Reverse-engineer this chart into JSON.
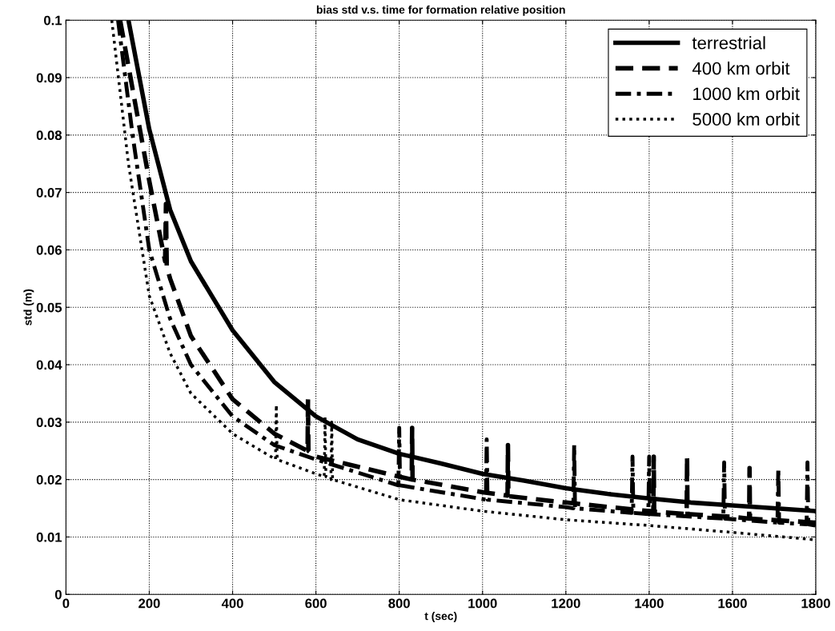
{
  "chart_data": {
    "type": "line",
    "title": "bias std v.s. time for formation relative position",
    "xlabel": "t (sec)",
    "ylabel": "std (m)",
    "xlim": [
      0,
      1800
    ],
    "ylim": [
      0,
      0.1
    ],
    "xticks": [
      0,
      200,
      400,
      600,
      800,
      1000,
      1200,
      1400,
      1600,
      1800
    ],
    "yticks": [
      0,
      0.01,
      0.02,
      0.03,
      0.04,
      0.05,
      0.06,
      0.07,
      0.08,
      0.09,
      0.1
    ],
    "grid": true,
    "legend": "top right",
    "marker": "none",
    "series": [
      {
        "name": "terrestrial",
        "color": "#000000",
        "line_style": "solid",
        "x": [
          150,
          200,
          250,
          300,
          350,
          400,
          500,
          600,
          700,
          800,
          900,
          1000,
          1100,
          1200,
          1300,
          1400,
          1500,
          1600,
          1700,
          1800
        ],
        "values": [
          0.1,
          0.081,
          0.067,
          0.058,
          0.052,
          0.046,
          0.037,
          0.031,
          0.027,
          0.0245,
          0.0228,
          0.021,
          0.0198,
          0.0185,
          0.0175,
          0.0167,
          0.016,
          0.0155,
          0.015,
          0.0145
        ]
      },
      {
        "name": "400 km orbit",
        "color": "#000000",
        "line_style": "dashed",
        "x": [
          130,
          160,
          200,
          238,
          240,
          242,
          250,
          300,
          400,
          500,
          580,
          581,
          582,
          600,
          800,
          830,
          831,
          832,
          1000,
          1060,
          1061,
          1062,
          1200,
          1400,
          1410,
          1411,
          1412,
          1490,
          1491,
          1492,
          1600,
          1640,
          1641,
          1642,
          1800
        ],
        "values": [
          0.1,
          0.088,
          0.072,
          0.058,
          0.068,
          0.057,
          0.055,
          0.045,
          0.034,
          0.028,
          0.025,
          0.034,
          0.025,
          0.024,
          0.0205,
          0.02,
          0.029,
          0.02,
          0.0178,
          0.0172,
          0.026,
          0.0171,
          0.016,
          0.0145,
          0.0144,
          0.024,
          0.0144,
          0.014,
          0.024,
          0.014,
          0.0135,
          0.0132,
          0.022,
          0.0132,
          0.0125
        ]
      },
      {
        "name": "1000 km orbit",
        "color": "#000000",
        "line_style": "dashdot",
        "x": [
          125,
          160,
          200,
          250,
          300,
          400,
          500,
          600,
          798,
          800,
          802,
          1008,
          1010,
          1012,
          1200,
          1218,
          1220,
          1222,
          1358,
          1360,
          1362,
          1398,
          1400,
          1402,
          1578,
          1580,
          1582,
          1708,
          1710,
          1712,
          1778,
          1780,
          1782,
          1800
        ],
        "values": [
          0.1,
          0.08,
          0.06,
          0.048,
          0.04,
          0.031,
          0.026,
          0.0235,
          0.019,
          0.029,
          0.019,
          0.0165,
          0.027,
          0.0165,
          0.0152,
          0.015,
          0.026,
          0.015,
          0.0142,
          0.024,
          0.0142,
          0.014,
          0.024,
          0.014,
          0.0132,
          0.023,
          0.0132,
          0.0125,
          0.022,
          0.0125,
          0.0122,
          0.023,
          0.0122,
          0.012
        ]
      },
      {
        "name": "5000 km orbit",
        "color": "#000000",
        "line_style": "dotted",
        "x": [
          110,
          150,
          200,
          250,
          300,
          400,
          503,
          505,
          507,
          600,
          620,
          622,
          624,
          636,
          638,
          640,
          800,
          1000,
          1200,
          1400,
          1600,
          1800
        ],
        "values": [
          0.1,
          0.075,
          0.052,
          0.042,
          0.035,
          0.028,
          0.0235,
          0.033,
          0.0235,
          0.021,
          0.0205,
          0.031,
          0.0205,
          0.02,
          0.03,
          0.02,
          0.0165,
          0.0145,
          0.013,
          0.012,
          0.0108,
          0.0095
        ]
      }
    ]
  }
}
